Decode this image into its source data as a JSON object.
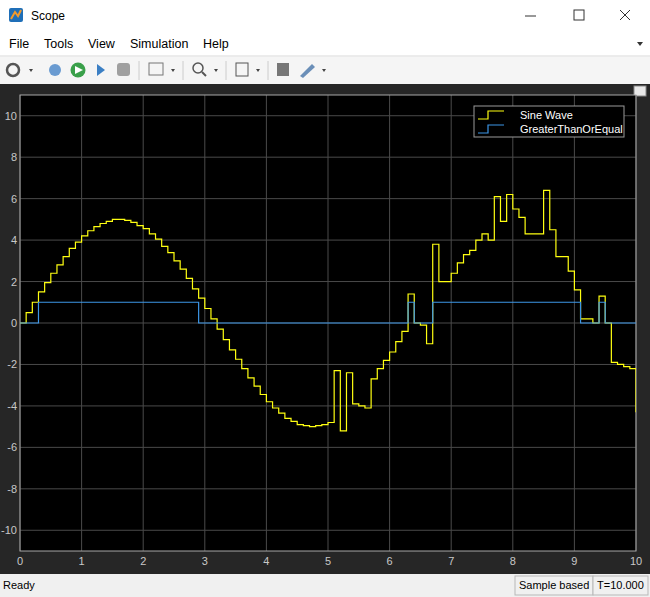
{
  "window": {
    "title": "Scope",
    "menu": [
      "File",
      "Tools",
      "View",
      "Simulation",
      "Help"
    ],
    "status": "Ready",
    "status_fields": [
      "Sample based",
      "T=10.000"
    ]
  },
  "chart_data": {
    "type": "stairs",
    "x": [
      0,
      0.1,
      0.2,
      0.3,
      0.4,
      0.5,
      0.6,
      0.7,
      0.8,
      0.9,
      1,
      1.1,
      1.2,
      1.3,
      1.4,
      1.5,
      1.6,
      1.7,
      1.8,
      1.9,
      2,
      2.1,
      2.2,
      2.3,
      2.4,
      2.5,
      2.6,
      2.7,
      2.8,
      2.9,
      3,
      3.1,
      3.2,
      3.3,
      3.4,
      3.5,
      3.6,
      3.7,
      3.8,
      3.9,
      4,
      4.1,
      4.2,
      4.3,
      4.4,
      4.5,
      4.6,
      4.7,
      4.8,
      4.9,
      5,
      5.1,
      5.2,
      5.3,
      5.4,
      5.5,
      5.6,
      5.7,
      5.8,
      5.9,
      6,
      6.1,
      6.2,
      6.3,
      6.4,
      6.5,
      6.6,
      6.7,
      6.8,
      6.9,
      7,
      7.1,
      7.2,
      7.3,
      7.4,
      7.5,
      7.6,
      7.7,
      7.8,
      7.9,
      8,
      8.1,
      8.2,
      8.3,
      8.4,
      8.5,
      8.6,
      8.7,
      8.8,
      8.9,
      9,
      9.1,
      9.2,
      9.3,
      9.4,
      9.5,
      9.6,
      9.7,
      9.8,
      9.9,
      10
    ],
    "series": [
      {
        "name": "Sine Wave",
        "color": "#ffff11",
        "values": [
          0,
          0.5,
          1.0,
          1.5,
          1.95,
          2.4,
          2.8,
          3.2,
          3.6,
          3.9,
          4.2,
          4.45,
          4.65,
          4.8,
          4.9,
          5.0,
          5.0,
          4.95,
          4.85,
          4.7,
          4.55,
          4.3,
          4.05,
          3.7,
          3.4,
          3.0,
          2.6,
          2.15,
          1.65,
          1.2,
          0.7,
          0.2,
          -0.3,
          -0.8,
          -1.3,
          -1.75,
          -2.2,
          -2.65,
          -3.05,
          -3.45,
          -3.8,
          -4.1,
          -4.35,
          -4.6,
          -4.75,
          -4.9,
          -4.95,
          -5.0,
          -4.95,
          -4.9,
          -4.8,
          -2.3,
          -5.2,
          -2.4,
          -3.9,
          -4.0,
          -4.1,
          -2.7,
          -2.2,
          -1.8,
          -1.4,
          -0.9,
          -0.4,
          1.4,
          0.0,
          -0.1,
          -1.0,
          3.8,
          2.0,
          2.0,
          2.4,
          2.9,
          3.3,
          3.5,
          4.0,
          4.3,
          4.0,
          6.1,
          4.9,
          6.2,
          5.5,
          5.1,
          4.3,
          4.3,
          4.3,
          6.4,
          4.5,
          3.2,
          3.2,
          2.5,
          1.6,
          0.2,
          0.2,
          0.0,
          1.3,
          0.0,
          -1.9,
          -2.0,
          -2.1,
          -2.2,
          -4.3
        ]
      },
      {
        "name": "GreaterThanOrEqual",
        "color": "#3d96e6",
        "values": [
          0,
          0,
          0,
          1,
          1,
          1,
          1,
          1,
          1,
          1,
          1,
          1,
          1,
          1,
          1,
          1,
          1,
          1,
          1,
          1,
          1,
          1,
          1,
          1,
          1,
          1,
          1,
          1,
          1,
          0,
          0,
          0,
          0,
          0,
          0,
          0,
          0,
          0,
          0,
          0,
          0,
          0,
          0,
          0,
          0,
          0,
          0,
          0,
          0,
          0,
          0,
          0,
          0,
          0,
          0,
          0,
          0,
          0,
          0,
          0,
          0,
          0,
          0,
          1,
          0,
          0,
          0,
          1,
          1,
          1,
          1,
          1,
          1,
          1,
          1,
          1,
          1,
          1,
          1,
          1,
          1,
          1,
          1,
          1,
          1,
          1,
          1,
          1,
          1,
          1,
          1,
          0,
          0,
          0,
          1,
          0,
          0,
          0,
          0,
          0,
          0
        ]
      }
    ],
    "xlim": [
      0,
      10
    ],
    "ylim": [
      -11,
      11
    ],
    "xticks": [
      0,
      1,
      2,
      3,
      4,
      5,
      6,
      7,
      8,
      9,
      10
    ],
    "yticks": [
      -10,
      -8,
      -6,
      -4,
      -2,
      0,
      2,
      4,
      6,
      8,
      10
    ],
    "grid": true,
    "legend": "top-right"
  }
}
